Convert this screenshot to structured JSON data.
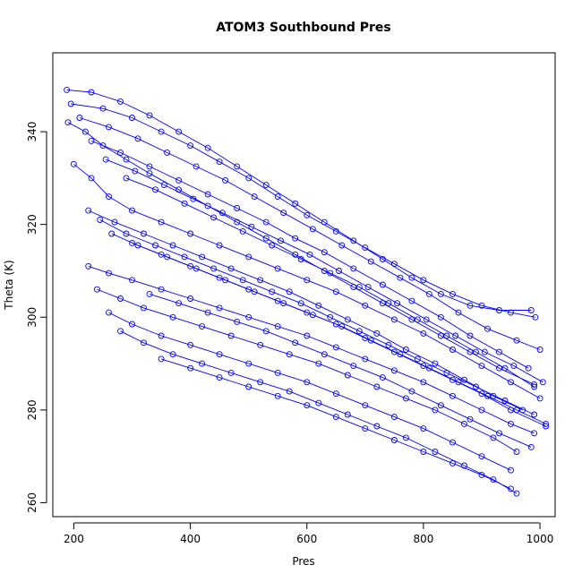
{
  "chart_data": {
    "type": "scatter",
    "title": "ATOM3 Southbound Pres",
    "xlabel": "Pres",
    "ylabel": "Theta (K)",
    "xlim": [
      164,
      1026
    ],
    "ylim": [
      257,
      357
    ],
    "xticks": [
      200,
      400,
      600,
      800,
      1000
    ],
    "xtick_labels": [
      "200",
      "400",
      "600",
      "800",
      "1000"
    ],
    "yticks": [
      260,
      280,
      300,
      320,
      340
    ],
    "ytick_labels": [
      "260",
      "280",
      "300",
      "320",
      "340"
    ],
    "grid": false,
    "legend": "none",
    "marker": "open-circle",
    "connected": true,
    "color": "#0000ff",
    "series": [
      {
        "x": [
          188,
          230,
          280,
          330,
          380,
          430,
          480,
          530,
          580,
          630,
          680,
          730,
          780,
          830,
          880,
          930,
          985
        ],
        "y": [
          349,
          348.5,
          346.5,
          343.5,
          340,
          336.5,
          332.5,
          328.5,
          324.5,
          320.5,
          316.5,
          312.5,
          308.5,
          305,
          302.5,
          301.5,
          301.5
        ]
      },
      {
        "x": [
          195,
          250,
          300,
          350,
          400,
          450,
          500,
          550,
          600,
          650,
          700,
          750,
          800,
          850,
          900,
          950,
          992
        ],
        "y": [
          346,
          345,
          343,
          340,
          337,
          333.5,
          330,
          326,
          322,
          318.5,
          315,
          311.5,
          308,
          305,
          302.5,
          301,
          300
        ]
      },
      {
        "x": [
          210,
          260,
          310,
          360,
          410,
          460,
          510,
          560,
          610,
          660,
          710,
          760,
          810,
          860,
          910,
          960,
          1000
        ],
        "y": [
          343,
          341,
          338.5,
          335.5,
          332.5,
          329.5,
          326,
          322.5,
          319,
          315.5,
          312,
          308.5,
          305,
          301,
          297.5,
          295,
          293
        ]
      },
      {
        "x": [
          230,
          280,
          330,
          380,
          430,
          480,
          530,
          580,
          630,
          680,
          730,
          780,
          830,
          880,
          930,
          980
        ],
        "y": [
          338,
          335.5,
          332.5,
          329.5,
          326.5,
          323.5,
          320.5,
          317,
          314,
          310.5,
          307,
          303.5,
          300,
          296,
          292.5,
          289
        ]
      },
      {
        "x": [
          255,
          305,
          355,
          405,
          455,
          505,
          555,
          605,
          655,
          705,
          755,
          805,
          855,
          905,
          955,
          1005
        ],
        "y": [
          334,
          331.5,
          328.5,
          325.5,
          322.5,
          319.5,
          316.5,
          313.5,
          310,
          306.5,
          303,
          299.5,
          296,
          292.5,
          289.5,
          286
        ]
      },
      {
        "x": [
          290,
          340,
          390,
          440,
          490,
          540,
          590,
          640,
          690,
          740,
          790,
          840,
          890,
          940,
          990
        ],
        "y": [
          330,
          327.5,
          324.5,
          321.5,
          318.5,
          315.5,
          312.5,
          309.5,
          306.5,
          303,
          299.5,
          296,
          292.5,
          289,
          285
        ]
      },
      {
        "x": [
          200,
          230,
          260,
          300,
          350,
          400,
          450,
          500,
          550,
          600,
          650,
          700,
          750,
          800,
          850,
          900,
          950,
          1000
        ],
        "y": [
          333,
          330,
          326,
          323,
          320.5,
          318,
          315.5,
          313,
          310.5,
          308,
          305.5,
          302.5,
          299.5,
          296.5,
          293,
          289.5,
          286,
          282.5
        ]
      },
      {
        "x": [
          225,
          270,
          320,
          370,
          420,
          470,
          520,
          570,
          620,
          670,
          720,
          770,
          820,
          870,
          920,
          970
        ],
        "y": [
          323,
          320.5,
          318,
          315.5,
          313,
          310.5,
          308,
          305.5,
          302.5,
          299.5,
          296.5,
          293,
          290,
          286.5,
          283,
          280
        ]
      },
      {
        "x": [
          245,
          290,
          340,
          390,
          440,
          490,
          540,
          590,
          640,
          690,
          740,
          790,
          840,
          890,
          940,
          990
        ],
        "y": [
          321,
          318,
          315.5,
          313,
          310.5,
          308,
          305.5,
          303,
          300,
          297,
          294,
          291,
          288,
          285,
          282,
          279
        ]
      },
      {
        "x": [
          265,
          310,
          360,
          410,
          460,
          510,
          560,
          610,
          660,
          710,
          760,
          810,
          860,
          910,
          960,
          1010
        ],
        "y": [
          318,
          315.5,
          313,
          310.5,
          308,
          305.5,
          303,
          300.5,
          298,
          295,
          292,
          289,
          286,
          283,
          280,
          277
        ]
      },
      {
        "x": [
          225,
          260,
          300,
          350,
          400,
          450,
          500,
          550,
          600,
          650,
          700,
          750,
          800,
          850,
          900,
          950,
          990
        ],
        "y": [
          311,
          309.5,
          308,
          306,
          304,
          302,
          300,
          298,
          296,
          293.5,
          291,
          288.5,
          286,
          283,
          280,
          277,
          275
        ]
      },
      {
        "x": [
          240,
          280,
          320,
          370,
          420,
          470,
          520,
          570,
          620,
          670,
          720,
          770,
          820,
          870,
          920,
          960
        ],
        "y": [
          306,
          304,
          302,
          300,
          298,
          296,
          294,
          292,
          290,
          287.5,
          285,
          282.5,
          280,
          277,
          274,
          271
        ]
      },
      {
        "x": [
          260,
          300,
          350,
          400,
          450,
          500,
          550,
          600,
          650,
          700,
          750,
          800,
          850,
          900,
          950
        ],
        "y": [
          301,
          298.5,
          296,
          294,
          292,
          290,
          288,
          286,
          283.5,
          281,
          278.5,
          276,
          273,
          270,
          267
        ]
      },
      {
        "x": [
          280,
          320,
          370,
          420,
          470,
          520,
          570,
          620,
          670,
          720,
          770,
          820,
          870,
          920,
          960
        ],
        "y": [
          297,
          294.5,
          292,
          290,
          288,
          286,
          284,
          281.5,
          279,
          276.5,
          274,
          271,
          268,
          265,
          262
        ]
      },
      {
        "x": [
          190,
          220,
          250,
          290,
          330,
          380,
          430,
          480,
          530,
          580,
          630,
          680,
          730,
          780,
          830,
          880,
          930,
          990
        ],
        "y": [
          342,
          340,
          337,
          334,
          331,
          327.5,
          324,
          320.5,
          317,
          313.5,
          310,
          306.5,
          303,
          299.5,
          296,
          292.5,
          289,
          285.5
        ]
      },
      {
        "x": [
          300,
          350,
          400,
          450,
          500,
          550,
          600,
          650,
          700,
          750,
          800,
          850,
          900,
          950,
          1010
        ],
        "y": [
          316,
          313.5,
          311,
          308.5,
          306,
          303.5,
          301,
          298.5,
          295.5,
          292.5,
          289.5,
          286.5,
          283.5,
          280,
          276.5
        ]
      },
      {
        "x": [
          330,
          380,
          430,
          480,
          530,
          580,
          630,
          680,
          730,
          780,
          830,
          880,
          930,
          985
        ],
        "y": [
          305,
          303,
          301,
          299,
          297,
          294.5,
          292,
          289.5,
          287,
          284,
          281,
          278,
          275,
          272
        ]
      },
      {
        "x": [
          350,
          400,
          450,
          500,
          550,
          600,
          650,
          700,
          750,
          800,
          850,
          900,
          950
        ],
        "y": [
          291,
          289,
          287,
          285,
          283,
          281,
          278.5,
          276,
          273.5,
          271,
          268.5,
          266,
          263
        ]
      }
    ]
  }
}
